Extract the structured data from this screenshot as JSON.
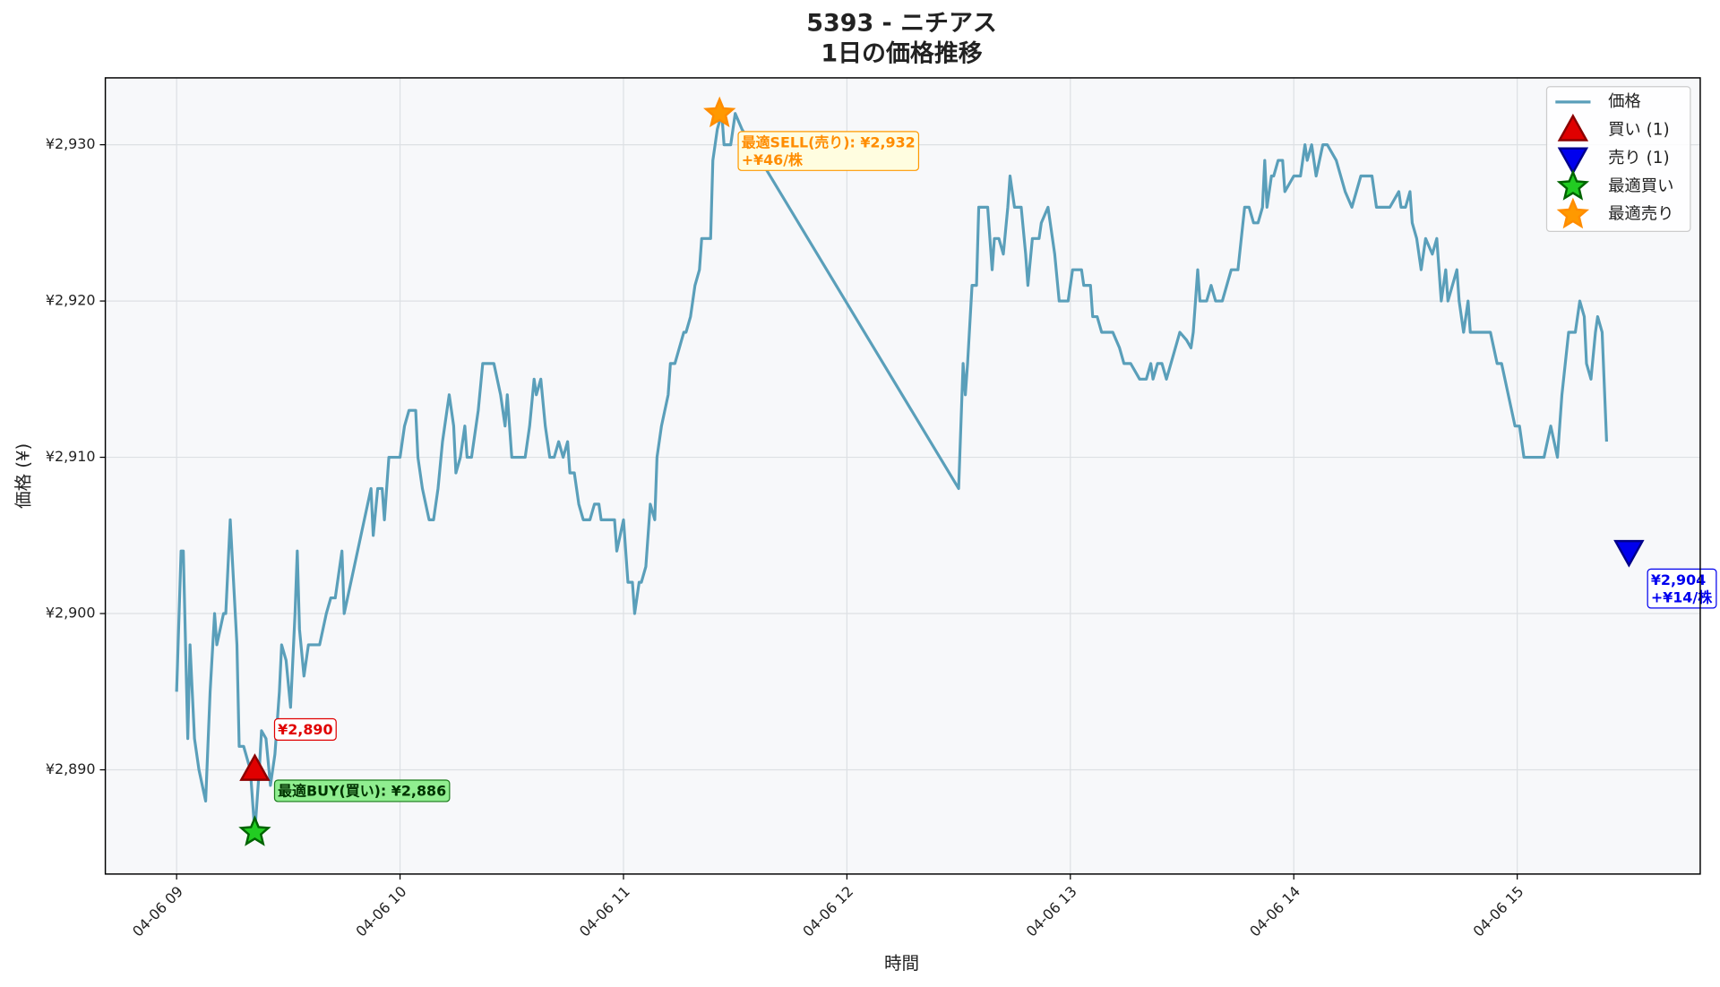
{
  "chart_data": {
    "type": "line",
    "title": "5393 - ニチアス",
    "subtitle": "1日の価格推移",
    "x_label": "時間",
    "y_label": "価格 (¥)",
    "xlim": [
      8.681,
      15.819
    ],
    "ylim": [
      2883.33,
      2934.28
    ],
    "xticks": [
      {
        "value": 9,
        "label": "04-06 09"
      },
      {
        "value": 10,
        "label": "04-06 10"
      },
      {
        "value": 11,
        "label": "04-06 11"
      },
      {
        "value": 12,
        "label": "04-06 12"
      },
      {
        "value": 13,
        "label": "04-06 13"
      },
      {
        "value": 14,
        "label": "04-06 14"
      },
      {
        "value": 15,
        "label": "04-06 15"
      }
    ],
    "yticks": [
      {
        "value": 2890,
        "label": "¥2,890"
      },
      {
        "value": 2900,
        "label": "¥2,900"
      },
      {
        "value": 2910,
        "label": "¥2,910"
      },
      {
        "value": 2920,
        "label": "¥2,920"
      },
      {
        "value": 2930,
        "label": "¥2,930"
      }
    ],
    "grid": true,
    "legend": "upper right",
    "series": [
      {
        "name": "価格",
        "color": "#5a9fba",
        "x": [
          9.0,
          9.02,
          9.03,
          9.05,
          9.06,
          9.08,
          9.1,
          9.13,
          9.15,
          9.17,
          9.18,
          9.21,
          9.22,
          9.24,
          9.27,
          9.28,
          9.3,
          9.33,
          9.35,
          9.37,
          9.38,
          9.4,
          9.42,
          9.44,
          9.46,
          9.47,
          9.49,
          9.51,
          9.53,
          9.54,
          9.55,
          9.57,
          9.59,
          9.64,
          9.67,
          9.69,
          9.71,
          9.74,
          9.75,
          9.78,
          9.87,
          9.88,
          9.9,
          9.92,
          9.93,
          9.95,
          10.0,
          10.02,
          10.04,
          10.07,
          10.08,
          10.1,
          10.13,
          10.15,
          10.17,
          10.19,
          10.2,
          10.22,
          10.24,
          10.25,
          10.27,
          10.29,
          10.3,
          10.32,
          10.34,
          10.35,
          10.37,
          10.42,
          10.45,
          10.47,
          10.48,
          10.5,
          10.56,
          10.58,
          10.6,
          10.61,
          10.63,
          10.65,
          10.67,
          10.69,
          10.71,
          10.73,
          10.75,
          10.76,
          10.78,
          10.8,
          10.82,
          10.85,
          10.87,
          10.89,
          10.9,
          10.94,
          10.96,
          10.97,
          11.0,
          11.02,
          11.04,
          11.05,
          11.07,
          11.08,
          11.1,
          11.12,
          11.14,
          11.15,
          11.17,
          11.2,
          11.21,
          11.23,
          11.25,
          11.27,
          11.28,
          11.3,
          11.32,
          11.34,
          11.35,
          11.39,
          11.4,
          11.42,
          11.44,
          11.45,
          11.48,
          11.5,
          11.53,
          12.5,
          12.52,
          12.53,
          12.54,
          12.56,
          12.58,
          12.59,
          12.63,
          12.65,
          12.66,
          12.68,
          12.7,
          12.72,
          12.73,
          12.75,
          12.78,
          12.8,
          12.81,
          12.83,
          12.86,
          12.87,
          12.9,
          12.93,
          12.95,
          12.99,
          13.01,
          13.05,
          13.06,
          13.09,
          13.1,
          13.12,
          13.14,
          13.19,
          13.22,
          13.24,
          13.27,
          13.31,
          13.34,
          13.36,
          13.37,
          13.39,
          13.41,
          13.43,
          13.45,
          13.49,
          13.52,
          13.54,
          13.55,
          13.57,
          13.58,
          13.61,
          13.63,
          13.65,
          13.68,
          13.7,
          13.72,
          13.75,
          13.78,
          13.8,
          13.82,
          13.84,
          13.86,
          13.87,
          13.88,
          13.9,
          13.91,
          13.93,
          13.95,
          13.96,
          13.98,
          14.0,
          14.03,
          14.05,
          14.06,
          14.08,
          14.1,
          14.13,
          14.15,
          14.19,
          14.23,
          14.26,
          14.3,
          14.35,
          14.37,
          14.41,
          14.43,
          14.47,
          14.48,
          14.5,
          14.52,
          14.53,
          14.55,
          14.57,
          14.59,
          14.62,
          14.64,
          14.66,
          14.68,
          14.69,
          14.73,
          14.74,
          14.76,
          14.78,
          14.79,
          14.88,
          14.91,
          14.93,
          14.99,
          15.01,
          15.03,
          15.12,
          15.15,
          15.18,
          15.2,
          15.23,
          15.26,
          15.28,
          15.3,
          15.31,
          15.33,
          15.35,
          15.36,
          15.38,
          15.4
        ],
        "values": [
          2895,
          2904,
          2904,
          2892,
          2898,
          2892,
          2890,
          2888,
          2895,
          2900,
          2898,
          2900,
          2900,
          2906,
          2898,
          2891.5,
          2891.5,
          2890,
          2886,
          2890,
          2892.5,
          2892,
          2889,
          2891,
          2895,
          2898,
          2897,
          2894,
          2900,
          2904,
          2899,
          2896,
          2898,
          2898,
          2900,
          2901,
          2901,
          2904,
          2900,
          2902,
          2908,
          2905,
          2908,
          2908,
          2906,
          2910,
          2910,
          2912,
          2913,
          2913,
          2910,
          2908,
          2906,
          2906,
          2908,
          2911,
          2912,
          2914,
          2912,
          2909,
          2910,
          2912,
          2910,
          2910,
          2912,
          2913,
          2916,
          2916,
          2914,
          2912,
          2914,
          2910,
          2910,
          2912,
          2915,
          2914,
          2915,
          2912,
          2910,
          2910,
          2911,
          2910,
          2911,
          2909,
          2909,
          2907,
          2906,
          2906,
          2907,
          2907,
          2906,
          2906,
          2906,
          2904,
          2906,
          2902,
          2902,
          2900,
          2902,
          2902,
          2903,
          2907,
          2906,
          2910,
          2912,
          2914,
          2916,
          2916,
          2917,
          2918,
          2918,
          2919,
          2921,
          2922,
          2924,
          2924,
          2929,
          2931,
          2932,
          2930,
          2930,
          2932,
          2931,
          2908,
          2916,
          2914,
          2916,
          2921,
          2921,
          2926,
          2926,
          2922,
          2924,
          2924,
          2923,
          2926,
          2928,
          2926,
          2926,
          2923,
          2921,
          2924,
          2924,
          2925,
          2926,
          2923,
          2920,
          2920,
          2922,
          2922,
          2921,
          2921,
          2919,
          2919,
          2918,
          2918,
          2917,
          2916,
          2916,
          2915,
          2915,
          2916,
          2915,
          2916,
          2916,
          2915,
          2916,
          2918,
          2917.5,
          2917,
          2918,
          2922,
          2920,
          2920,
          2921,
          2920,
          2920,
          2921,
          2922,
          2922,
          2926,
          2926,
          2925,
          2925,
          2926,
          2929,
          2926,
          2928,
          2928,
          2929,
          2929,
          2927,
          2927.5,
          2928,
          2928,
          2930,
          2929,
          2930,
          2928,
          2930,
          2930,
          2929,
          2927,
          2926,
          2928,
          2928,
          2926,
          2926,
          2926,
          2927,
          2926,
          2926,
          2927,
          2925,
          2924,
          2922,
          2924,
          2923,
          2924,
          2920,
          2922,
          2920,
          2922,
          2920,
          2918,
          2920,
          2918,
          2918,
          2916,
          2916,
          2912,
          2912,
          2910,
          2910,
          2912,
          2910,
          2914,
          2918,
          2918,
          2920,
          2919,
          2916,
          2915,
          2918,
          2919,
          2918,
          2911
        ]
      }
    ],
    "markers": [
      {
        "name": "買い (1)",
        "shape": "triangle-up",
        "color": "#e00000",
        "x": 9.35,
        "value": 2890,
        "label_lines": [
          "¥2,890"
        ]
      },
      {
        "name": "売り (1)",
        "shape": "triangle-down",
        "color": "#0000ee",
        "x": 15.5,
        "value": 2904,
        "label_lines": [
          "¥2,904",
          "+¥14/株"
        ]
      },
      {
        "name": "最適買い",
        "shape": "star",
        "color": "#22cc22",
        "x": 9.35,
        "value": 2886,
        "label_lines": [
          "最適BUY(買い): ¥2,886"
        ]
      },
      {
        "name": "最適売り",
        "shape": "star",
        "color": "#ff9900",
        "x": 11.43,
        "value": 2932,
        "label_lines": [
          "最適SELL(売り): ¥2,932",
          "+¥46/株"
        ]
      }
    ]
  }
}
